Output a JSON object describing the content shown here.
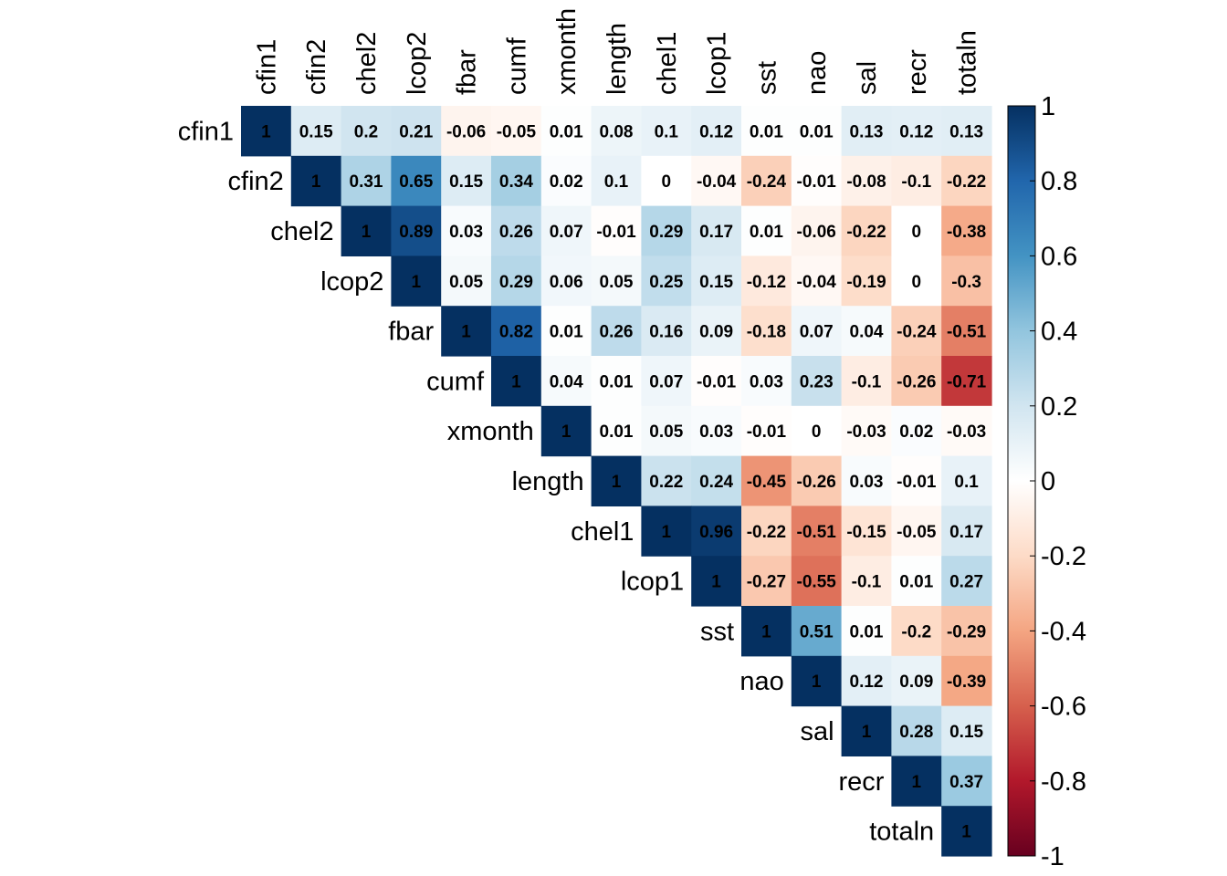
{
  "chart_data": {
    "type": "heatmap",
    "title": "",
    "variables": [
      "cfin1",
      "cfin2",
      "chel2",
      "lcop2",
      "fbar",
      "cumf",
      "xmonth",
      "length",
      "chel1",
      "lcop1",
      "sst",
      "nao",
      "sal",
      "recr",
      "totaln"
    ],
    "matrix_upper_rows": [
      [
        1,
        0.15,
        0.2,
        0.21,
        -0.06,
        -0.05,
        0.01,
        0.08,
        0.1,
        0.12,
        0.01,
        0.01,
        0.13,
        0.12,
        0.13
      ],
      [
        1,
        0.31,
        0.65,
        0.15,
        0.34,
        0.02,
        0.1,
        0,
        -0.04,
        -0.24,
        -0.01,
        -0.08,
        -0.1,
        -0.22
      ],
      [
        1,
        0.89,
        0.03,
        0.26,
        0.07,
        -0.01,
        0.29,
        0.17,
        0.01,
        -0.06,
        -0.22,
        0,
        -0.38
      ],
      [
        1,
        0.05,
        0.29,
        0.06,
        0.05,
        0.25,
        0.15,
        -0.12,
        -0.04,
        -0.19,
        0,
        -0.3
      ],
      [
        1,
        0.82,
        0.01,
        0.26,
        0.16,
        0.09,
        -0.18,
        0.07,
        0.04,
        -0.24,
        -0.51
      ],
      [
        1,
        0.04,
        0.01,
        0.07,
        -0.01,
        0.03,
        0.23,
        -0.1,
        -0.26,
        -0.71
      ],
      [
        1,
        0.01,
        0.05,
        0.03,
        -0.01,
        0,
        -0.03,
        0.02,
        -0.03
      ],
      [
        1,
        0.22,
        0.24,
        -0.45,
        -0.26,
        0.03,
        -0.01,
        0.1
      ],
      [
        1,
        0.96,
        -0.22,
        -0.51,
        -0.15,
        -0.05,
        0.17
      ],
      [
        1,
        -0.27,
        -0.55,
        -0.1,
        0.01,
        0.27
      ],
      [
        1,
        0.51,
        0.01,
        -0.2,
        -0.29
      ],
      [
        1,
        0.12,
        0.09,
        -0.39
      ],
      [
        1,
        0.28,
        0.15
      ],
      [
        1,
        0.37
      ],
      [
        1
      ]
    ],
    "colorbar": {
      "ticks": [
        "1",
        "0.8",
        "0.6",
        "0.4",
        "0.2",
        "0",
        "-0.2",
        "-0.4",
        "-0.6",
        "-0.8",
        "-1"
      ],
      "range": [
        -1,
        1
      ],
      "palette": [
        "#67001F",
        "#B2182B",
        "#D6604D",
        "#F4A582",
        "#FDDBC7",
        "#FFFFFF",
        "#D1E5F0",
        "#92C5DE",
        "#4393C3",
        "#2166AC",
        "#053061"
      ]
    },
    "layout": "upper-triangle",
    "legend_position": "right"
  }
}
